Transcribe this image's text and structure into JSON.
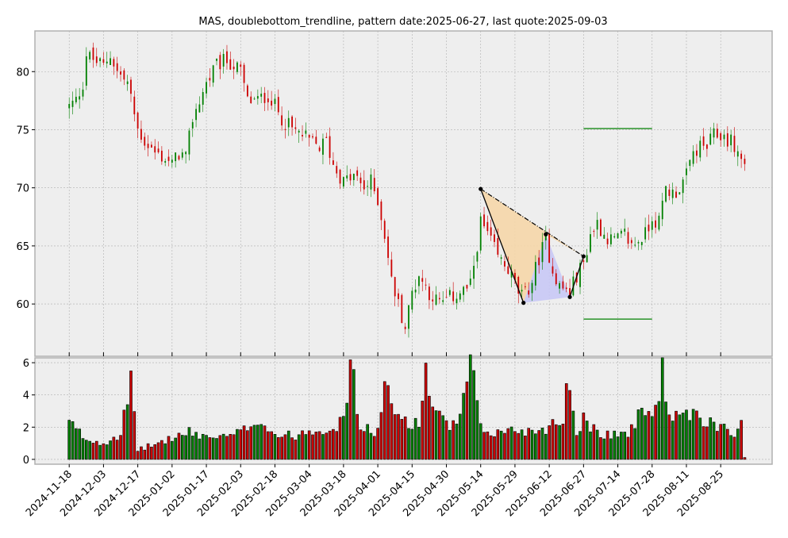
{
  "chart_data": {
    "type": "candlestick_with_volume",
    "title": "MAS, doublebottom_trendline, pattern date:2025-06-27, last quote:2025-09-03",
    "colors": {
      "up": "#008000",
      "down": "#cc0000",
      "panel_bg": "#eeeeee",
      "grid": "#b0b0b0",
      "pattern_upper_fill": "#f5d6a8",
      "pattern_lower_fill": "#c8c8f5",
      "target_line": "#008000"
    },
    "price_axis": {
      "ylim": [
        55.5,
        83.5
      ],
      "ticks": [
        60,
        65,
        70,
        75,
        80
      ]
    },
    "volume_axis": {
      "ylim": [
        -0.3,
        6.3
      ],
      "ticks": [
        0,
        2,
        4,
        6
      ]
    },
    "x_tick_labels": [
      "2024-11-18",
      "2024-12-03",
      "2024-12-17",
      "2025-01-02",
      "2025-01-17",
      "2025-02-03",
      "2025-02-18",
      "2025-03-04",
      "2025-03-18",
      "2025-04-01",
      "2025-04-15",
      "2025-04-30",
      "2025-05-14",
      "2025-05-29",
      "2025-06-12",
      "2025-06-27",
      "2025-07-14",
      "2025-07-28",
      "2025-08-11",
      "2025-08-25"
    ],
    "x_tick_index": [
      0,
      10,
      20,
      30,
      40,
      50,
      60,
      70,
      80,
      90,
      100,
      110,
      120,
      130,
      140,
      150,
      160,
      170,
      180,
      190
    ],
    "x_range": [
      -10,
      205
    ],
    "pattern": {
      "points": [
        {
          "date": "2025-05-14",
          "price": 69.9
        },
        {
          "date": "2025-05-28",
          "price": 60.1
        },
        {
          "date": "2025-06-09",
          "price": 66.0
        },
        {
          "date": "2025-06-23",
          "price": 60.6
        },
        {
          "date": "2025-06-27",
          "price": 64.1
        }
      ],
      "point_index": [
        120,
        132.5,
        139,
        146,
        150
      ],
      "target_upper": {
        "price": 75.1,
        "from": "2025-06-27",
        "to": "2025-07-28"
      },
      "target_lower": {
        "price": 58.7,
        "from": "2025-06-27",
        "to": "2025-07-28"
      },
      "target_index": [
        150,
        170
      ]
    },
    "close_keyframes": [
      [
        0,
        77
      ],
      [
        2,
        77.5
      ],
      [
        4,
        79
      ],
      [
        5,
        81.5
      ],
      [
        7,
        81
      ],
      [
        10,
        80.5
      ],
      [
        12,
        81.5
      ],
      [
        14,
        80
      ],
      [
        17,
        79
      ],
      [
        20,
        75
      ],
      [
        22,
        74
      ],
      [
        25,
        73
      ],
      [
        28,
        72.5
      ],
      [
        30,
        72
      ],
      [
        32,
        73
      ],
      [
        34,
        72.5
      ],
      [
        36,
        76
      ],
      [
        38,
        77.5
      ],
      [
        40,
        79
      ],
      [
        43,
        80.5
      ],
      [
        46,
        81
      ],
      [
        50,
        80
      ],
      [
        52,
        77.5
      ],
      [
        55,
        77.5
      ],
      [
        58,
        78
      ],
      [
        60,
        77
      ],
      [
        62,
        76
      ],
      [
        65,
        75
      ],
      [
        68,
        74.5
      ],
      [
        70,
        74
      ],
      [
        73,
        73.5
      ],
      [
        75,
        74
      ],
      [
        77,
        72
      ],
      [
        80,
        70.5
      ],
      [
        83,
        71
      ],
      [
        86,
        70
      ],
      [
        88,
        70.5
      ],
      [
        90,
        69
      ],
      [
        92,
        66
      ],
      [
        94,
        62
      ],
      [
        96,
        60
      ],
      [
        98,
        58
      ],
      [
        100,
        61
      ],
      [
        102,
        62.5
      ],
      [
        105,
        61
      ],
      [
        108,
        60
      ],
      [
        111,
        60.5
      ],
      [
        114,
        61
      ],
      [
        117,
        61.5
      ],
      [
        120,
        67
      ],
      [
        122,
        66
      ],
      [
        125,
        64
      ],
      [
        128,
        63
      ],
      [
        131,
        61
      ],
      [
        132.5,
        60.5
      ],
      [
        135,
        62
      ],
      [
        137,
        64
      ],
      [
        139,
        65.5
      ],
      [
        141,
        63
      ],
      [
        143,
        61.5
      ],
      [
        146,
        61
      ],
      [
        148,
        62.5
      ],
      [
        150,
        63.5
      ],
      [
        152,
        66
      ],
      [
        154,
        67
      ],
      [
        156,
        66
      ],
      [
        158,
        65.5
      ],
      [
        160,
        65.5
      ],
      [
        162,
        66
      ],
      [
        164,
        65
      ],
      [
        166,
        65.5
      ],
      [
        168,
        66
      ],
      [
        170,
        67.5
      ],
      [
        172,
        67
      ],
      [
        174,
        70
      ],
      [
        176,
        69.5
      ],
      [
        178,
        70
      ],
      [
        180,
        71
      ],
      [
        182,
        73
      ],
      [
        184,
        73.5
      ],
      [
        186,
        73.5
      ],
      [
        188,
        74.5
      ],
      [
        190,
        74.5
      ],
      [
        193,
        74
      ],
      [
        196,
        72.5
      ],
      [
        197,
        72
      ]
    ],
    "volume_keyframes": [
      [
        0,
        2.2
      ],
      [
        5,
        1.2
      ],
      [
        10,
        1.0
      ],
      [
        15,
        1.6
      ],
      [
        18,
        4.4
      ],
      [
        20,
        0.6
      ],
      [
        25,
        0.9
      ],
      [
        30,
        1.3
      ],
      [
        35,
        1.6
      ],
      [
        40,
        1.4
      ],
      [
        45,
        1.3
      ],
      [
        50,
        1.6
      ],
      [
        55,
        2.5
      ],
      [
        60,
        1.5
      ],
      [
        65,
        1.4
      ],
      [
        70,
        1.8
      ],
      [
        75,
        1.9
      ],
      [
        80,
        2.2
      ],
      [
        82,
        6.1
      ],
      [
        85,
        1.8
      ],
      [
        90,
        1.7
      ],
      [
        92,
        4.3
      ],
      [
        95,
        2.7
      ],
      [
        98,
        2.5
      ],
      [
        102,
        2.0
      ],
      [
        104,
        5.7
      ],
      [
        106,
        3.0
      ],
      [
        110,
        2.0
      ],
      [
        114,
        2.3
      ],
      [
        117,
        5.9
      ],
      [
        120,
        1.8
      ],
      [
        125,
        1.6
      ],
      [
        130,
        1.8
      ],
      [
        135,
        1.7
      ],
      [
        140,
        2.0
      ],
      [
        144,
        2.4
      ],
      [
        145,
        5.1
      ],
      [
        148,
        1.8
      ],
      [
        150,
        2.4
      ],
      [
        155,
        1.6
      ],
      [
        160,
        1.5
      ],
      [
        165,
        1.8
      ],
      [
        167,
        3.4
      ],
      [
        170,
        2.4
      ],
      [
        172,
        4.4
      ],
      [
        173,
        5.2
      ],
      [
        175,
        2.9
      ],
      [
        178,
        2.3
      ],
      [
        180,
        2.7
      ],
      [
        185,
        2.3
      ],
      [
        190,
        2.1
      ],
      [
        195,
        1.6
      ],
      [
        196,
        2.2
      ],
      [
        197,
        0.1
      ]
    ]
  }
}
